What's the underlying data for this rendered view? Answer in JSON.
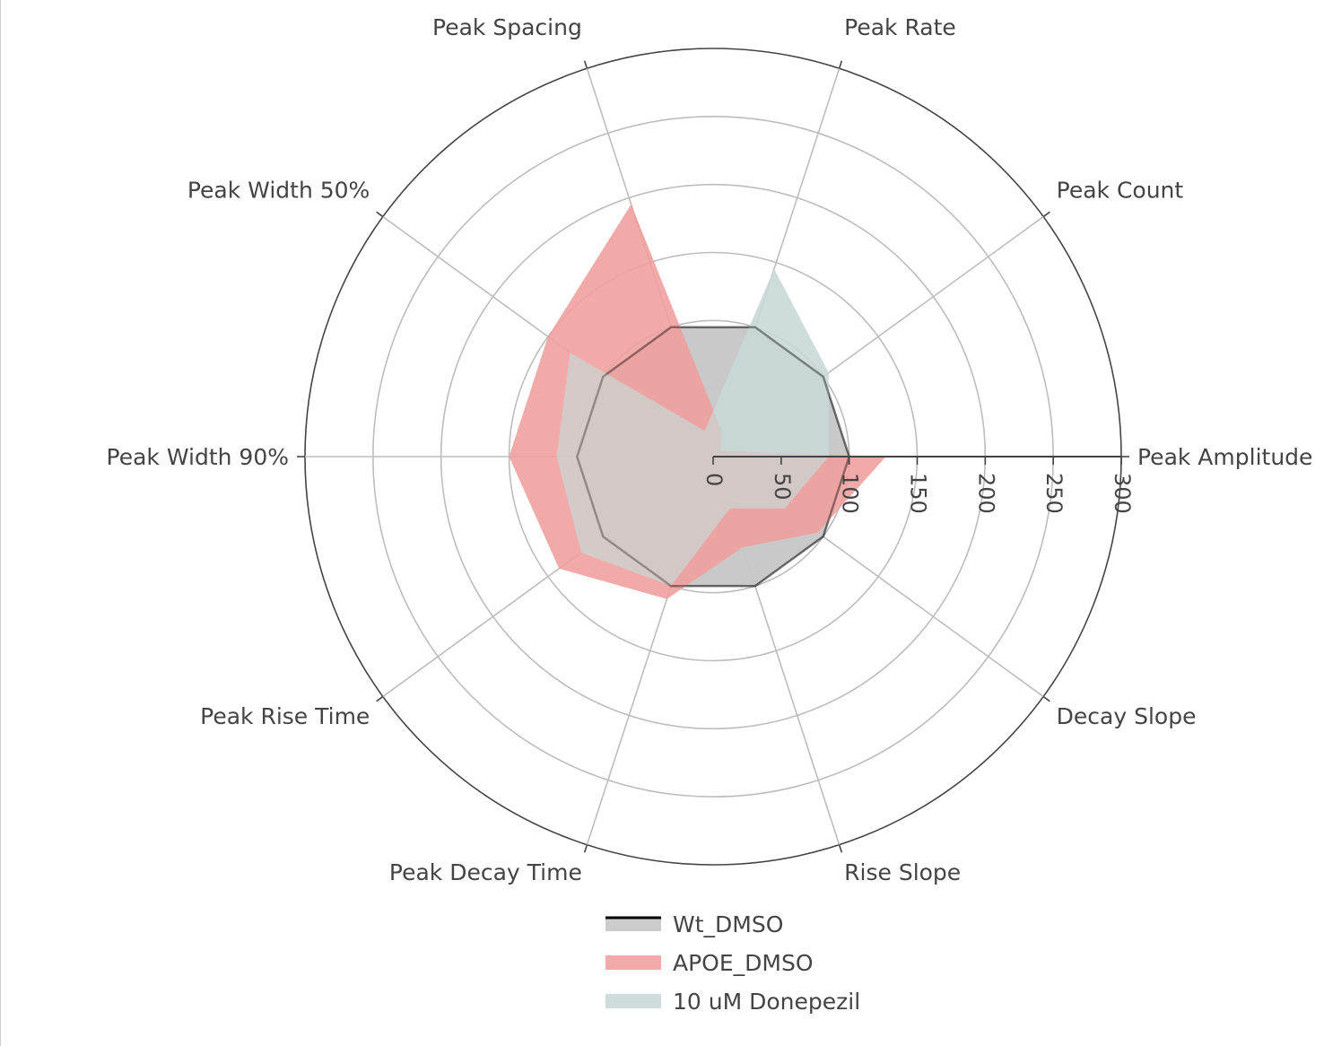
{
  "chart_data": {
    "type": "radar",
    "categories": [
      "Peak Amplitude",
      "Peak Count",
      "Peak Rate",
      "Peak Spacing",
      "Peak Width 50%",
      "Peak Width 90%",
      "Peak Rise Time",
      "Peak Decay Time",
      "Rise Slope",
      "Decay Slope"
    ],
    "radial_range": [
      0,
      300
    ],
    "radial_ticks": [
      0,
      50,
      100,
      150,
      200,
      250,
      300
    ],
    "legend_position": "bottom-center",
    "series": [
      {
        "name": "Wt_DMSO",
        "values": [
          100,
          100,
          100,
          100,
          100,
          100,
          100,
          100,
          100,
          100
        ],
        "line_color": "#000000",
        "fill_color": "#c6c6c6"
      },
      {
        "name": "APOE_DMSO",
        "values": [
          127,
          7,
          20,
          195,
          150,
          150,
          140,
          110,
          70,
          95
        ],
        "line_color": "#f1a09d",
        "fill_color": "#f1a09d"
      },
      {
        "name": "10 uM Donepezil",
        "values": [
          85,
          105,
          145,
          20,
          130,
          115,
          120,
          100,
          40,
          65
        ],
        "line_color": "#c9d9d6",
        "fill_color": "#c9d9d6"
      }
    ]
  },
  "legend": {
    "items": [
      "Wt_DMSO",
      "APOE_DMSO",
      "10 uM Donepezil"
    ]
  }
}
